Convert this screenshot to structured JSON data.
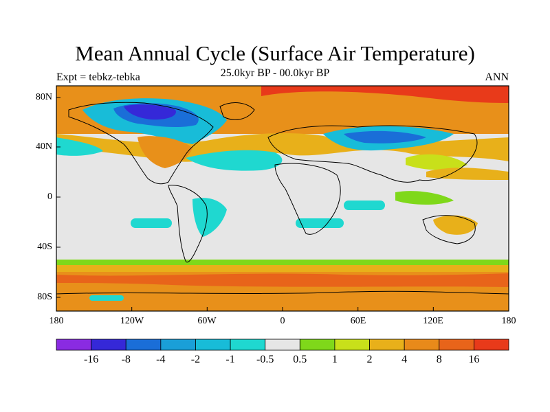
{
  "title": "Mean Annual Cycle (Surface Air Temperature)",
  "subtitle": "25.0kyr BP - 00.0kyr BP",
  "left_label": "Expt = tebkz-tebka",
  "right_label": "ANN",
  "lat_labels": [
    "80N",
    "40N",
    "0",
    "40S",
    "80S"
  ],
  "lon_labels": [
    "180",
    "120W",
    "60W",
    "0",
    "60E",
    "120E",
    "180"
  ],
  "colorbar": {
    "labels": [
      "-16",
      "-8",
      "-4",
      "-2",
      "-1",
      "-0.5",
      "0.5",
      "1",
      "2",
      "4",
      "8",
      "16"
    ],
    "colors": [
      "#8a2be2",
      "#3528d8",
      "#1a6ed8",
      "#1a9fd8",
      "#18bcd8",
      "#1fd8d0",
      "#e6e6e6",
      "#7fd81a",
      "#c8e01a",
      "#e8b01a",
      "#e88a1a",
      "#e8641a",
      "#e83a1a"
    ]
  },
  "colors": {
    "neutral": "#e6e6e6",
    "warm_strong": "#e8641a",
    "warm_mid": "#e8901a",
    "warm_light": "#e8b01a",
    "yellow": "#c8e01a",
    "green": "#7fd81a",
    "cyan": "#1fd8d0",
    "blue_light": "#18bcd8",
    "blue_mid": "#1a6ed8",
    "blue_dark": "#3528d8",
    "red": "#e83a1a"
  }
}
